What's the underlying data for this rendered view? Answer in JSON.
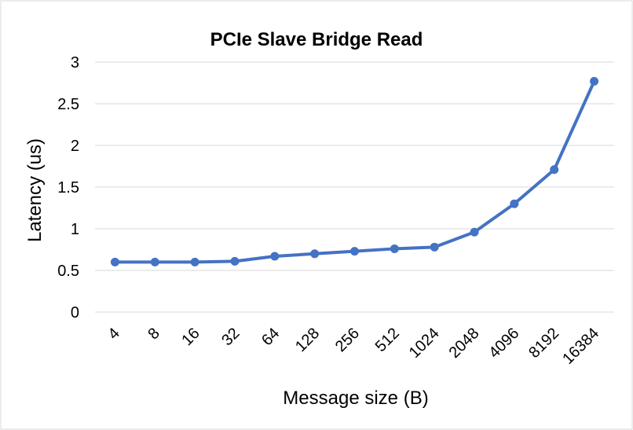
{
  "chart_data": {
    "type": "line",
    "title": "PCIe Slave Bridge Read",
    "xlabel": "Message size (B)",
    "ylabel": "Latency (us)",
    "categories": [
      "4",
      "8",
      "16",
      "32",
      "64",
      "128",
      "256",
      "512",
      "1024",
      "2048",
      "4096",
      "8192",
      "16384"
    ],
    "series": [
      {
        "values": [
          0.6,
          0.6,
          0.6,
          0.61,
          0.67,
          0.7,
          0.73,
          0.76,
          0.78,
          0.96,
          1.3,
          1.71,
          2.77
        ]
      }
    ],
    "ylim": [
      0,
      3
    ],
    "yticks": [
      0,
      0.5,
      1,
      1.5,
      2,
      2.5,
      3
    ],
    "ytick_labels": [
      "0",
      "0.5",
      "1",
      "1.5",
      "2",
      "2.5",
      "3"
    ],
    "grid": true,
    "legend": "none",
    "colors": {
      "series": "#4472C4",
      "grid": "#D9D9D9",
      "border": "#D9D9D9"
    }
  }
}
